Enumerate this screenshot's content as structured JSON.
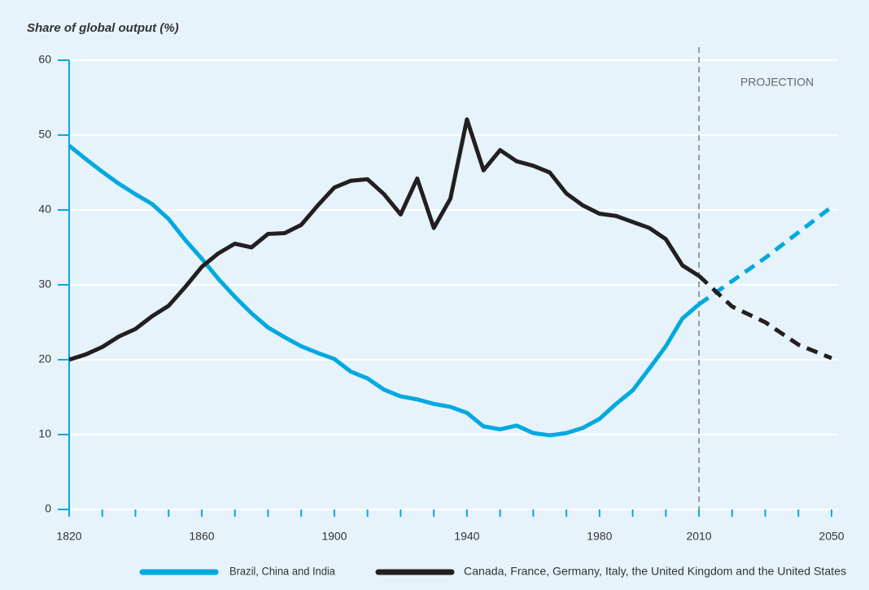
{
  "chart_data": {
    "type": "line",
    "title": "Share of global output (%)",
    "x": [
      1820,
      1825,
      1830,
      1835,
      1840,
      1845,
      1850,
      1855,
      1860,
      1865,
      1870,
      1875,
      1880,
      1885,
      1890,
      1895,
      1900,
      1905,
      1910,
      1915,
      1920,
      1925,
      1930,
      1935,
      1940,
      1945,
      1950,
      1955,
      1960,
      1965,
      1970,
      1975,
      1980,
      1985,
      1990,
      1995,
      2000,
      2005,
      2010,
      2020,
      2030,
      2040,
      2050
    ],
    "series": [
      {
        "name": "Brazil, China and India",
        "color": "#00a9e0",
        "values": [
          48.6,
          46.8,
          45.1,
          43.5,
          42.1,
          40.8,
          38.8,
          36,
          33.5,
          30.8,
          28.4,
          26.2,
          24.3,
          23,
          21.8,
          20.9,
          20.1,
          18.4,
          17.5,
          16,
          15.1,
          14.7,
          14.1,
          13.7,
          12.9,
          11.1,
          10.7,
          11.2,
          10.2,
          9.9,
          10.2,
          10.9,
          12.1,
          14.1,
          15.9,
          18.8,
          21.8,
          25.5,
          27.4,
          30.5,
          33.6,
          37,
          40.4
        ]
      },
      {
        "name": "Canada, France, Germany, Italy, the United Kingdom and the United States",
        "color": "#231f20",
        "values": [
          20,
          20.7,
          21.7,
          23.1,
          24.1,
          25.8,
          27.2,
          29.7,
          32.4,
          34.2,
          35.5,
          35,
          36.8,
          36.9,
          38,
          40.6,
          43,
          43.9,
          44.1,
          42.1,
          39.4,
          44.2,
          37.6,
          41.5,
          52.1,
          45.3,
          48,
          46.5,
          45.9,
          45,
          42.2,
          40.6,
          39.5,
          39.2,
          38.4,
          37.6,
          36.1,
          32.6,
          31.2,
          27.1,
          25,
          22,
          20.2
        ]
      }
    ],
    "projection": {
      "label": "PROJECTION",
      "x": 2010
    },
    "xlim": [
      1820,
      2050
    ],
    "xticks": [
      1820,
      {
        "value": 1830,
        "label": null
      },
      {
        "value": 1840,
        "label": null
      },
      {
        "value": 1850,
        "label": null
      },
      1860,
      {
        "value": 1870,
        "label": null
      },
      {
        "value": 1880,
        "label": null
      },
      {
        "value": 1890,
        "label": null
      },
      1900,
      {
        "value": 1910,
        "label": null
      },
      {
        "value": 1920,
        "label": null
      },
      {
        "value": 1930,
        "label": null
      },
      1940,
      {
        "value": 1950,
        "label": null
      },
      {
        "value": 1960,
        "label": null
      },
      {
        "value": 1970,
        "label": null
      },
      1980,
      {
        "value": 1990,
        "label": null
      },
      {
        "value": 2000,
        "label": null
      },
      2010,
      {
        "value": 2020,
        "label": null
      },
      {
        "value": 2030,
        "label": null
      },
      {
        "value": 2040,
        "label": null
      },
      2050
    ],
    "ylim": [
      0,
      60
    ],
    "yticks": [
      0,
      10,
      20,
      30,
      40,
      50,
      60
    ],
    "grid": true,
    "legend": "bottom"
  }
}
